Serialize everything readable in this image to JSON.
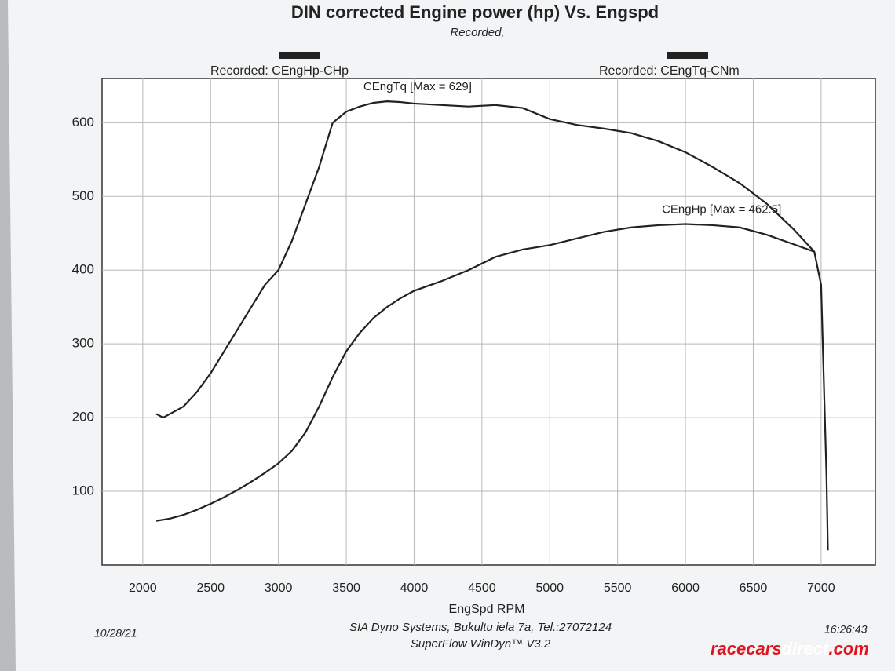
{
  "chart_data": {
    "type": "line",
    "title": "DIN corrected Engine power (hp) Vs. Engspd",
    "subtitle": "Recorded,",
    "x_label": "EngSpd RPM",
    "xlim": [
      1700,
      7400
    ],
    "xticks": [
      2000,
      2500,
      3000,
      3500,
      4000,
      4500,
      5000,
      5500,
      6000,
      6500,
      7000
    ],
    "ylim": [
      0,
      660
    ],
    "yticks": [
      100,
      200,
      300,
      400,
      500,
      600
    ],
    "grid": true,
    "series": [
      {
        "name": "Recorded: CEngHp-CHp",
        "color": "#222222",
        "annotation": "CEngHp [Max = 462.5]",
        "x": [
          2100,
          2200,
          2300,
          2400,
          2500,
          2600,
          2700,
          2800,
          2900,
          3000,
          3100,
          3200,
          3300,
          3400,
          3500,
          3600,
          3700,
          3800,
          3900,
          4000,
          4200,
          4400,
          4600,
          4800,
          5000,
          5200,
          5400,
          5600,
          5800,
          6000,
          6200,
          6400,
          6600,
          6800,
          6950
        ],
        "values": [
          60,
          63,
          68,
          75,
          83,
          92,
          102,
          113,
          125,
          138,
          155,
          180,
          215,
          255,
          290,
          315,
          335,
          350,
          362,
          372,
          385,
          400,
          418,
          428,
          434,
          443,
          452,
          458,
          461,
          462.5,
          461,
          458,
          448,
          435,
          425
        ]
      },
      {
        "name": "Recorded: CEngTq-CNm",
        "color": "#222222",
        "annotation": "CEngTq [Max = 629]",
        "x": [
          2100,
          2150,
          2200,
          2300,
          2400,
          2500,
          2600,
          2700,
          2800,
          2900,
          3000,
          3100,
          3200,
          3300,
          3400,
          3500,
          3600,
          3700,
          3800,
          3900,
          4000,
          4200,
          4400,
          4600,
          4800,
          5000,
          5200,
          5400,
          5600,
          5800,
          6000,
          6200,
          6400,
          6600,
          6800,
          6950,
          7000,
          7020,
          7040,
          7050
        ],
        "values": [
          205,
          200,
          205,
          215,
          235,
          260,
          290,
          320,
          350,
          380,
          400,
          440,
          490,
          540,
          600,
          615,
          622,
          627,
          629,
          628,
          626,
          624,
          622,
          624,
          620,
          605,
          597,
          592,
          586,
          575,
          560,
          540,
          518,
          490,
          455,
          425,
          380,
          250,
          120,
          20
        ]
      }
    ],
    "footer": {
      "date": "10/28/21",
      "company": "SIA Dyno Systems, Bukultu iela 7a, Tel.:27072124",
      "software": "SuperFlow WinDyn™ V3.2",
      "time": "16:26:43"
    },
    "watermark": [
      "racecars",
      "direct",
      ".com"
    ]
  }
}
